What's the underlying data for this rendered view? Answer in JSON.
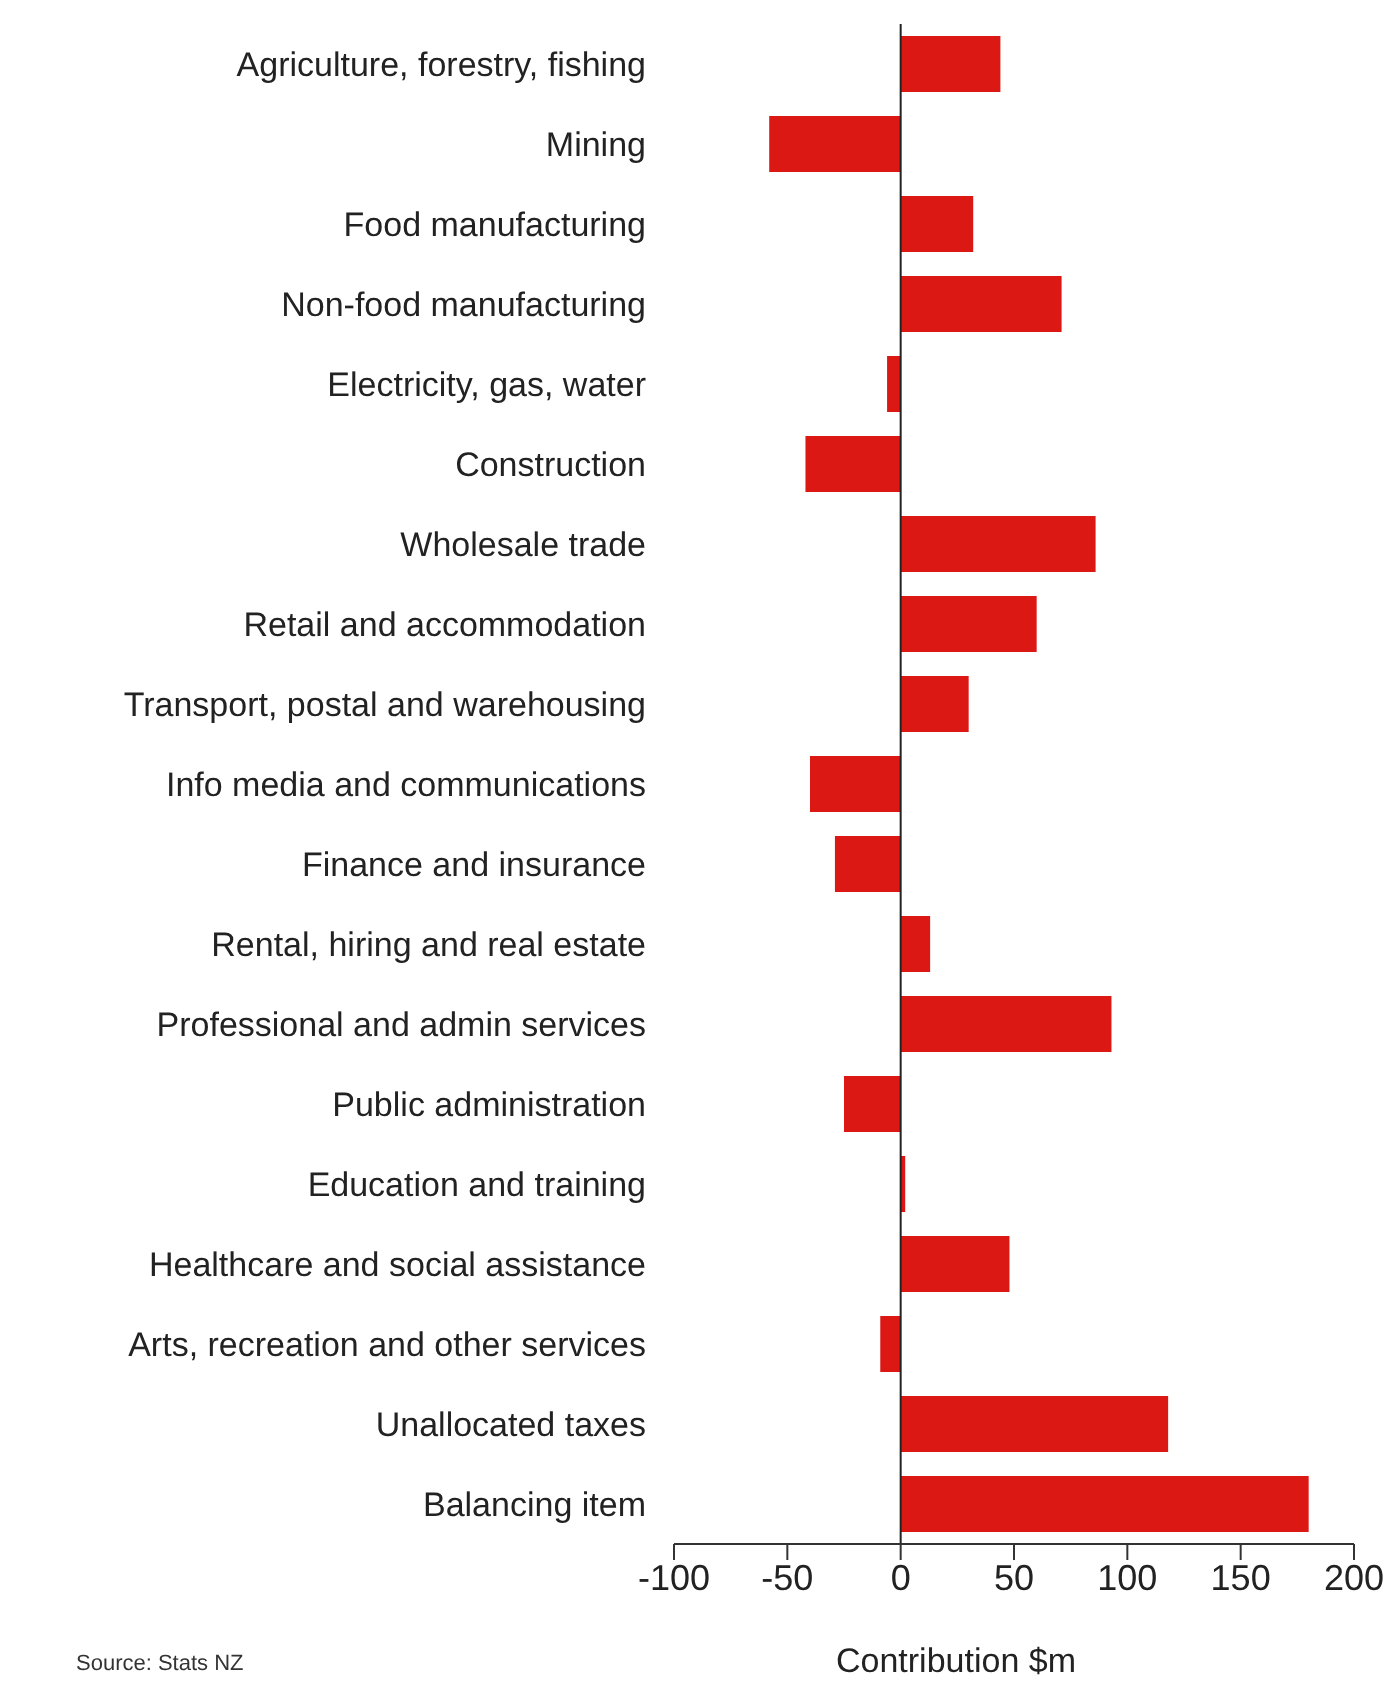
{
  "chart_data": {
    "type": "bar",
    "orientation": "horizontal",
    "xlabel": "Contribution $m",
    "categories": [
      "Agriculture, forestry, fishing",
      "Mining",
      "Food manufacturing",
      "Non-food manufacturing",
      "Electricity, gas, water",
      "Construction",
      "Wholesale trade",
      "Retail and accommodation",
      "Transport, postal and warehousing",
      "Info media and communications",
      "Finance and insurance",
      "Rental, hiring and real estate",
      "Professional and admin services",
      "Public administration",
      "Education and training",
      "Healthcare and social assistance",
      "Arts, recreation and other services",
      "Unallocated taxes",
      "Balancing item"
    ],
    "values": [
      44,
      -58,
      32,
      71,
      -6,
      -42,
      86,
      60,
      30,
      -40,
      -29,
      13,
      93,
      -25,
      2,
      48,
      -9,
      118,
      180
    ],
    "color": "#dc1814",
    "xlim": [
      -100,
      200
    ],
    "xticks": [
      -100,
      -50,
      0,
      50,
      100,
      150,
      200
    ],
    "annotations": [
      "Source: Stats NZ"
    ]
  }
}
